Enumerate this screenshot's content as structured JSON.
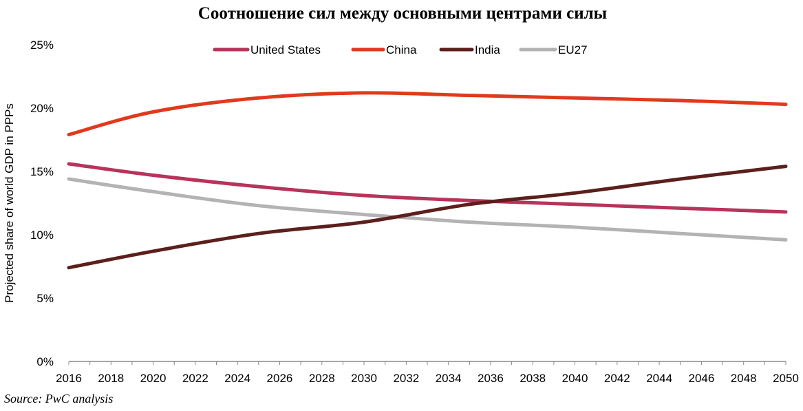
{
  "chart_data": {
    "type": "line",
    "title": "Соотношение сил между основными центрами силы",
    "ylabel": "Projected share of world GDP in PPPs",
    "xlabel": "",
    "ylim": [
      0,
      25
    ],
    "xlim": [
      2016,
      2050
    ],
    "x_ticks": [
      "2016",
      "2018",
      "2020",
      "2022",
      "2024",
      "2026",
      "2028",
      "2030",
      "2032",
      "2034",
      "2036",
      "2038",
      "2040",
      "2042",
      "2044",
      "2046",
      "2048",
      "2050"
    ],
    "y_ticks": [
      "0%",
      "5%",
      "10%",
      "15%",
      "20%",
      "25%"
    ],
    "legend_position": "top-center",
    "grid": false,
    "x": [
      2016,
      2020,
      2025,
      2030,
      2035,
      2040,
      2045,
      2050
    ],
    "series": [
      {
        "name": "United States",
        "color": "#b8335a",
        "values": [
          15.6,
          14.7,
          13.8,
          13.1,
          12.7,
          12.4,
          12.1,
          11.8
        ]
      },
      {
        "name": "China",
        "color": "#e03a1e",
        "values": [
          17.9,
          19.7,
          20.8,
          21.2,
          21.0,
          20.8,
          20.6,
          20.3
        ]
      },
      {
        "name": "India",
        "color": "#5c1f1c",
        "values": [
          7.4,
          8.7,
          10.1,
          11.0,
          12.4,
          13.3,
          14.4,
          15.4
        ]
      },
      {
        "name": "EU27",
        "color": "#b3b3b3",
        "values": [
          14.4,
          13.4,
          12.3,
          11.6,
          11.0,
          10.6,
          10.1,
          9.6
        ]
      }
    ]
  },
  "source": "Source: PwC analysis"
}
